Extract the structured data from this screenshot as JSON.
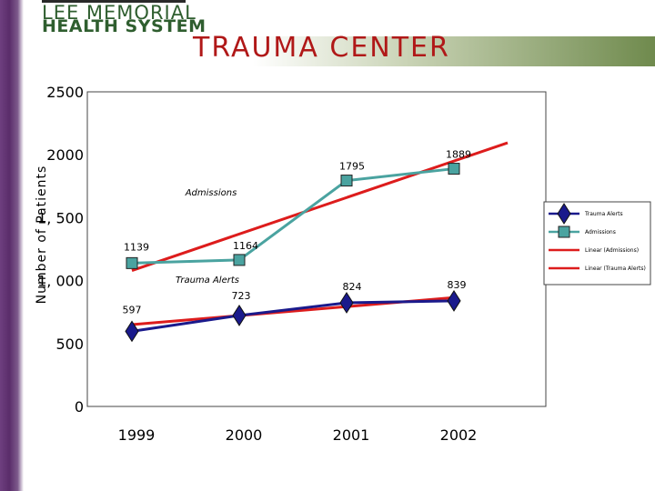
{
  "logo": {
    "line1": "LEE MEMORIAL",
    "line2": "HEALTH SYSTEM"
  },
  "page_title": "TRAUMA CENTER",
  "colors": {
    "band_purple": "#5a2d6a",
    "header_green": "#6f8a4d",
    "title_red": "#b01818",
    "logo_green": "#2f5e2f",
    "trauma_alerts": "#1a1a8c",
    "admissions": "#4aa3a0",
    "linear": "#dd1c1c"
  },
  "chart_data": {
    "type": "line",
    "title": "",
    "xlabel": "",
    "ylabel": "Number of Patients",
    "categories": [
      "1999",
      "2000",
      "2001",
      "2002"
    ],
    "ylim": [
      0,
      2500
    ],
    "yticks": [
      {
        "value": 0,
        "label": "0"
      },
      {
        "value": 500,
        "label": "500"
      },
      {
        "value": 1000,
        "label": "1, 000"
      },
      {
        "value": 1500,
        "label": "1, 500"
      },
      {
        "value": 2000,
        "label": "2000"
      },
      {
        "value": 2500,
        "label": "2500"
      }
    ],
    "grid": false,
    "legend_position": "right",
    "series": [
      {
        "name": "Trauma Alerts",
        "values": [
          597,
          723,
          824,
          839
        ],
        "labels": [
          "597",
          "723",
          "824",
          "839"
        ],
        "marker": "diamond",
        "color": "#1a1a8c"
      },
      {
        "name": "Admissions",
        "values": [
          1139,
          1164,
          1795,
          1889
        ],
        "labels": [
          "1139",
          "1164",
          "1795",
          "1889"
        ],
        "marker": "square",
        "color": "#4aa3a0"
      },
      {
        "name": "Linear (Admissions)",
        "type": "trendline",
        "values": [
          1080,
          1370,
          1660,
          1950
        ],
        "x_extent": [
          0,
          3.5
        ],
        "color": "#dd1c1c"
      },
      {
        "name": "Linear (Trauma Alerts)",
        "type": "trendline",
        "values": [
          650,
          720,
          795,
          865
        ],
        "x_extent": [
          0,
          3.0
        ],
        "color": "#dd1c1c"
      }
    ],
    "annotations": [
      {
        "text": "Admissions",
        "series": "Admissions"
      },
      {
        "text": "Trauma Alerts",
        "series": "Trauma Alerts"
      }
    ],
    "legend": [
      {
        "label": "Trauma Alerts",
        "kind": "diamond-line",
        "color": "#1a1a8c"
      },
      {
        "label": "Admissions",
        "kind": "square-line",
        "color": "#4aa3a0"
      },
      {
        "label": "Linear (Admissions)",
        "kind": "line",
        "color": "#dd1c1c"
      },
      {
        "label": "Linear (Trauma Alerts)",
        "kind": "line",
        "color": "#dd1c1c"
      }
    ]
  }
}
